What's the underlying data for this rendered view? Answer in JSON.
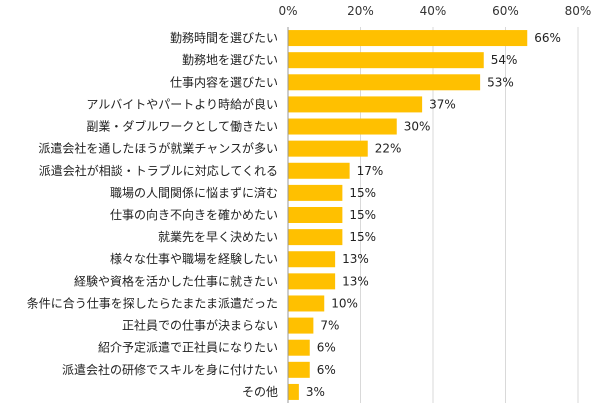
{
  "chart_data": {
    "type": "bar",
    "orientation": "horizontal",
    "title": "",
    "xlabel": "",
    "ylabel": "",
    "xlim": [
      0,
      80
    ],
    "ticks": [
      "0%",
      "20%",
      "40%",
      "60%",
      "80%"
    ],
    "tick_values": [
      0,
      20,
      40,
      60,
      80
    ],
    "categories": [
      "勤務時間を選びたい",
      "勤務地を選びたい",
      "仕事内容を選びたい",
      "アルバイトやパートより時給が良い",
      "副業・ダブルワークとして働きたい",
      "派遣会社を通したほうが就業チャンスが多い",
      "派遣会社が相談・トラブルに対応してくれる",
      "職場の人間関係に悩まずに済む",
      "仕事の向き不向きを確かめたい",
      "就業先を早く決めたい",
      "様々な仕事や職場を経験したい",
      "経験や資格を活かした仕事に就きたい",
      "条件に合う仕事を探したらたまたま派遣だった",
      "正社員での仕事が決まらない",
      "紹介予定派遣で正社員になりたい",
      "派遣会社の研修でスキルを身に付けたい",
      "その他"
    ],
    "values": [
      66,
      54,
      53,
      37,
      30,
      22,
      17,
      15,
      15,
      15,
      13,
      13,
      10,
      7,
      6,
      6,
      3
    ],
    "value_labels": [
      "66%",
      "54%",
      "53%",
      "37%",
      "30%",
      "22%",
      "17%",
      "15%",
      "15%",
      "15%",
      "13%",
      "13%",
      "10%",
      "7%",
      "6%",
      "6%",
      "3%"
    ],
    "bar_color": "#FFC000",
    "grid": true
  }
}
